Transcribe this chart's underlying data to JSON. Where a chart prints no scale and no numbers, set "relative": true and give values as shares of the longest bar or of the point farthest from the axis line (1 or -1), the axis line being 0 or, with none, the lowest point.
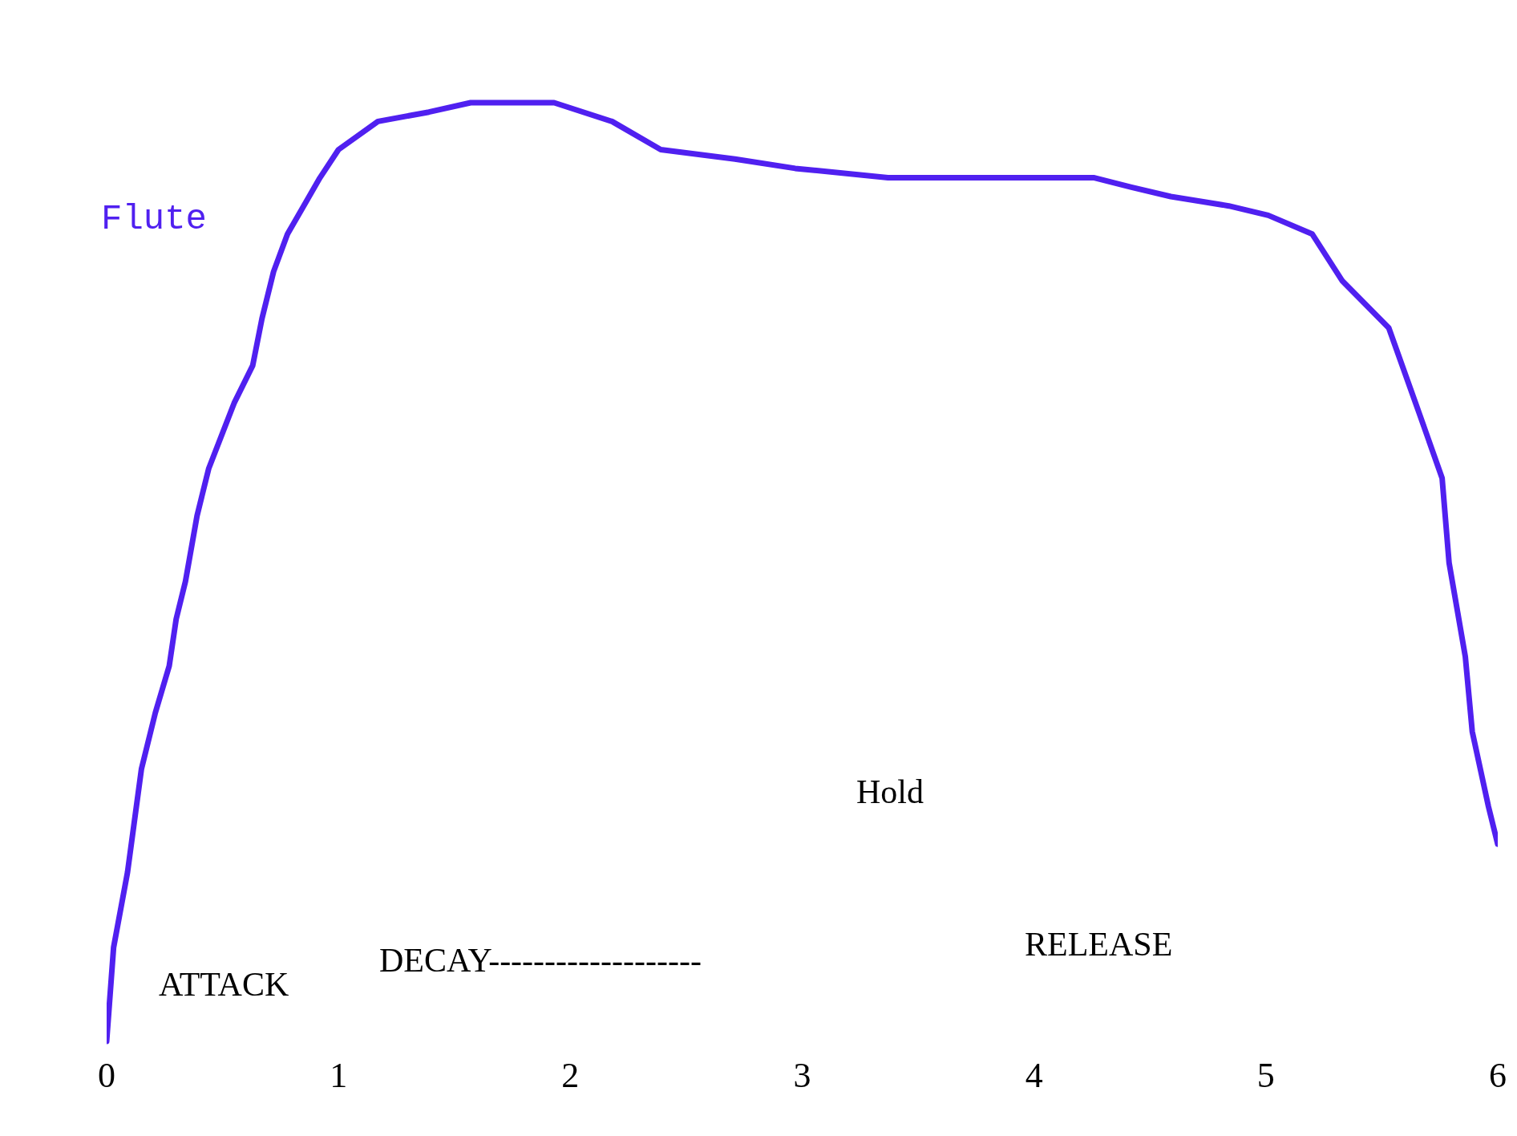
{
  "chart_data": {
    "type": "line",
    "relative": true,
    "x": [
      0,
      0.03,
      0.09,
      0.15,
      0.21,
      0.27,
      0.3,
      0.34,
      0.39,
      0.44,
      0.55,
      0.63,
      0.67,
      0.72,
      0.78,
      0.92,
      1.0,
      1.17,
      1.39,
      1.57,
      1.93,
      2.18,
      2.39,
      2.71,
      2.97,
      3.37,
      4.26,
      4.42,
      4.59,
      4.84,
      5.01,
      5.2,
      5.33,
      5.53,
      5.66,
      5.76,
      5.79,
      5.86,
      5.89,
      5.96,
      6.0
    ],
    "series": [
      {
        "name": "Flute",
        "color": "#5020f0",
        "values": [
          0,
          0.1,
          0.18,
          0.29,
          0.35,
          0.4,
          0.45,
          0.49,
          0.56,
          0.61,
          0.68,
          0.72,
          0.77,
          0.82,
          0.86,
          0.92,
          0.95,
          0.98,
          0.99,
          1.0,
          1.0,
          0.98,
          0.95,
          0.94,
          0.93,
          0.92,
          0.92,
          0.91,
          0.9,
          0.89,
          0.88,
          0.86,
          0.81,
          0.76,
          0.67,
          0.6,
          0.51,
          0.41,
          0.33,
          0.25,
          0.21
        ]
      }
    ],
    "xlim": [
      0,
      6
    ],
    "xticks": [
      0,
      1,
      2,
      3,
      4,
      5,
      6
    ],
    "annotations": [
      "ATTACK",
      "DECAY-------------------",
      "Hold",
      "RELEASE"
    ],
    "grid": false,
    "marker": "none",
    "line_style": "solid"
  }
}
